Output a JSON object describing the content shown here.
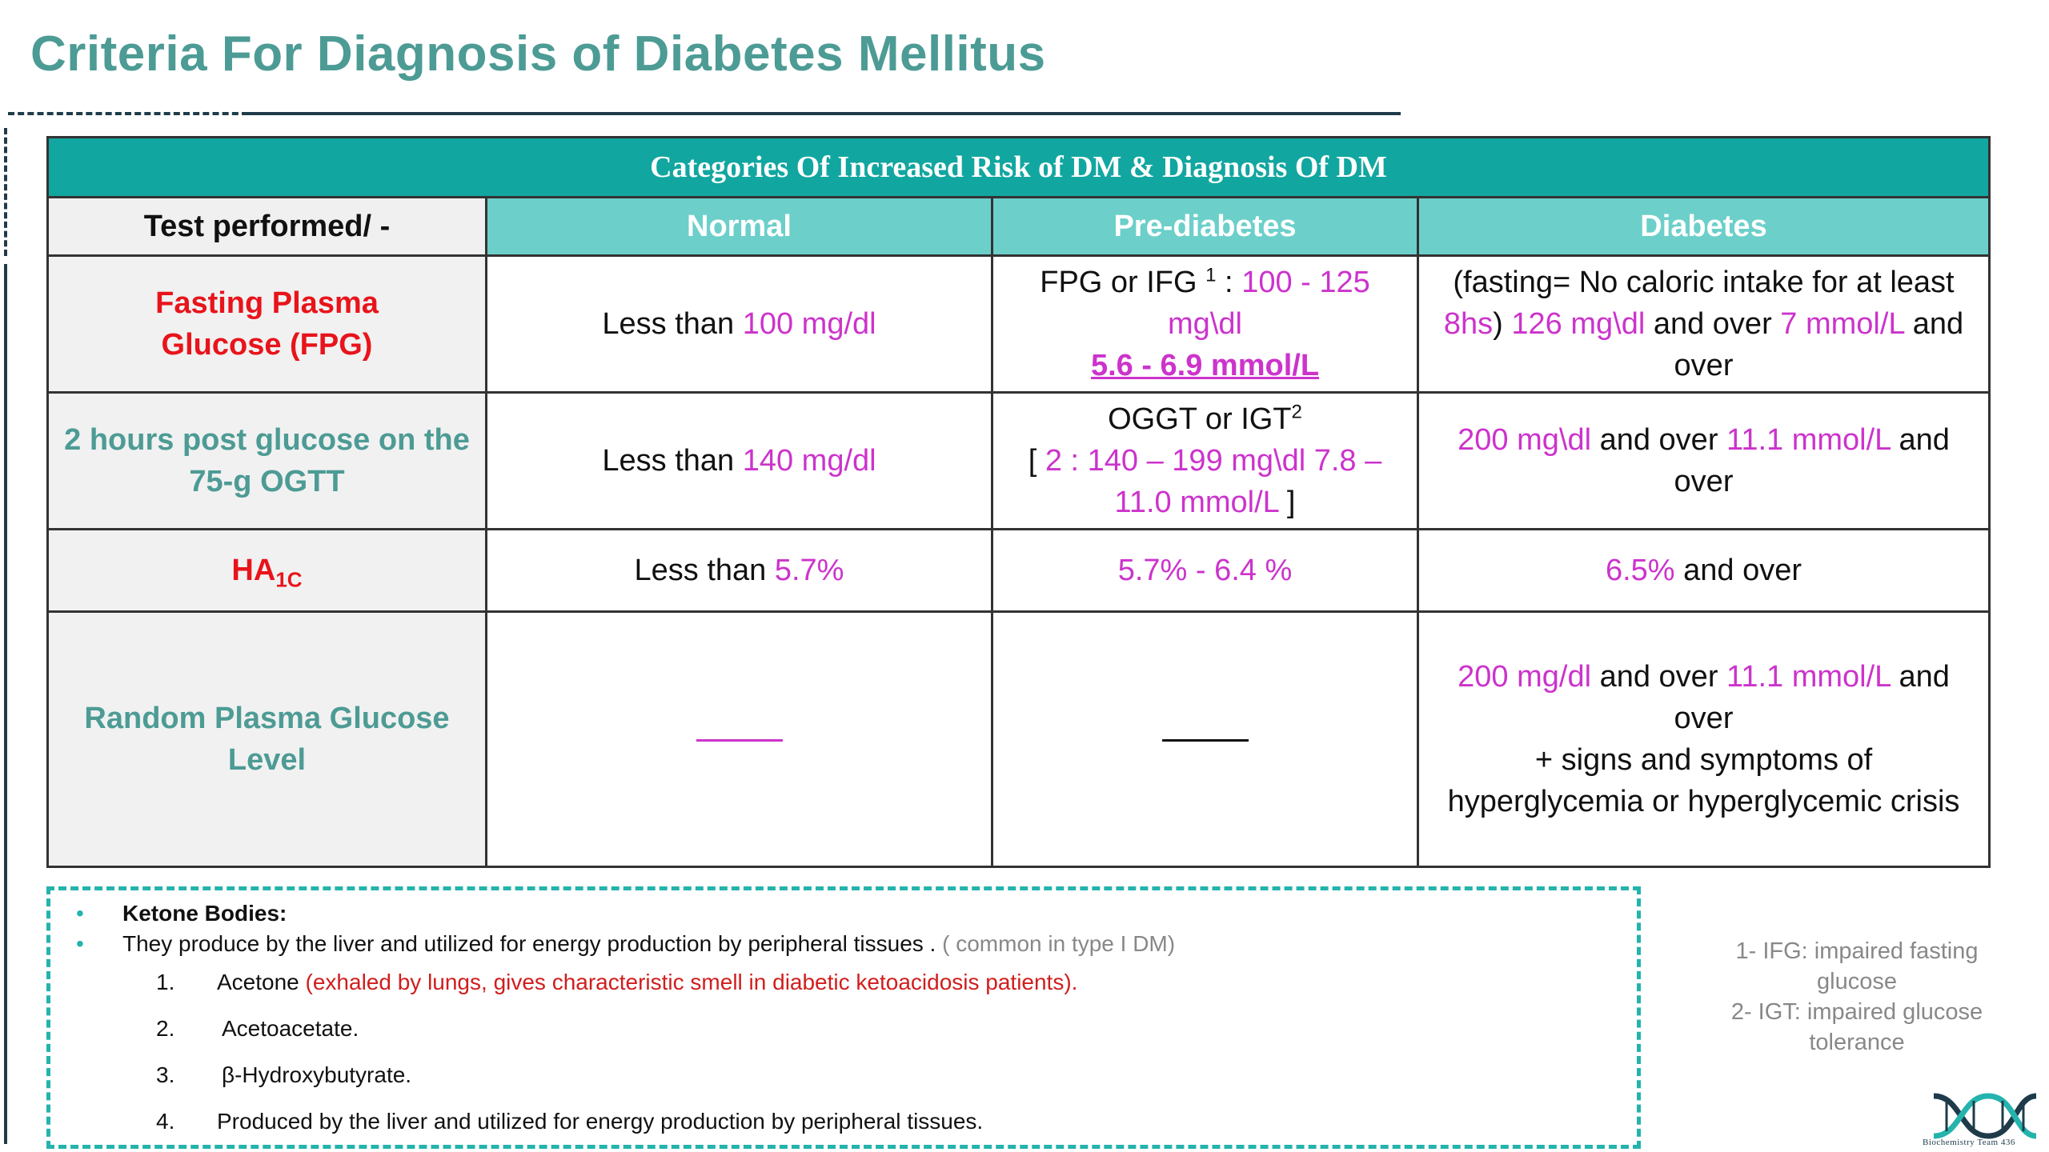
{
  "title": "Criteria For Diagnosis of Diabetes Mellitus",
  "table": {
    "caption": "Categories Of Increased Risk of DM & Diagnosis Of DM",
    "headers": [
      "Test performed/ -",
      "Normal",
      "Pre-diabetes",
      "Diabetes"
    ],
    "rows": [
      {
        "label": "Fasting Plasma Glucose (FPG)",
        "normal_prefix": "Less than ",
        "normal_value": "100 mg/dl",
        "pre_text": "FPG or IFG ",
        "pre_sup": "1",
        "pre_colon": " : ",
        "pre_value": "100 - 125 mg\\dl",
        "pre_mmol": "5.6 - 6.9 mmol/L",
        "dia_note": "(fasting= No caloric intake for at least ",
        "dia_hours": "8hs",
        "dia_close": ") ",
        "dia_value1": "126 mg\\dl",
        "dia_mid": " and over ",
        "dia_value2": "7 mmol/L",
        "dia_end": " and over"
      },
      {
        "label": "2 hours post glucose on the 75-g OGTT",
        "normal_prefix": "Less than ",
        "normal_value": "140 mg/dl",
        "pre_text": "OGGT or IGT",
        "pre_sup": "2",
        "pre_open": "[ ",
        "pre_value": "2 : 140 – 199 mg\\dl 7.8 – 11.0 mmol/L",
        "pre_close": " ]",
        "dia_value1": "200 mg\\dl",
        "dia_mid": " and over ",
        "dia_value2": "11.1 mmol/L",
        "dia_end": " and over"
      },
      {
        "label_main": "HA",
        "label_sub": "1C",
        "normal_prefix": "Less than ",
        "normal_value": "5.7%",
        "pre_value": "5.7% - 6.4 %",
        "dia_value": "6.5%",
        "dia_end": " and over"
      },
      {
        "label": "Random Plasma Glucose Level",
        "dia_value1": "200 mg/dl",
        "dia_mid": " and over ",
        "dia_value2": "11.1 mmol/L",
        "dia_end": " and over",
        "dia_line2": "+ signs and symptoms of",
        "dia_line3": "hyperglycemia or hyperglycemic crisis"
      }
    ]
  },
  "ketone": {
    "heading": "Ketone Bodies:",
    "intro": "They produce by the liver and utilized for energy production by peripheral tissues . ",
    "intro_note": "( common in type I DM)",
    "items": [
      {
        "num": "1.",
        "text": "Acetone ",
        "note": "(exhaled by lungs, gives characteristic smell in diabetic ketoacidosis patients)."
      },
      {
        "num": "2.",
        "text": "Acetoacetate."
      },
      {
        "num": "3.",
        "text": "β-Hydroxybutyrate."
      },
      {
        "num": "4.",
        "text": "Produced by the liver and utilized for energy production by peripheral tissues."
      }
    ]
  },
  "footnotes": [
    "1- IFG: impaired fasting glucose",
    "2- IGT: impaired glucose tolerance"
  ],
  "logo_text": "Biochemistry Team 436",
  "colors": {
    "title": "#4d9b95",
    "header": "#12a6a0",
    "subheader": "#6ccfca",
    "value": "#cc33cc",
    "alert": "#e8141b"
  }
}
